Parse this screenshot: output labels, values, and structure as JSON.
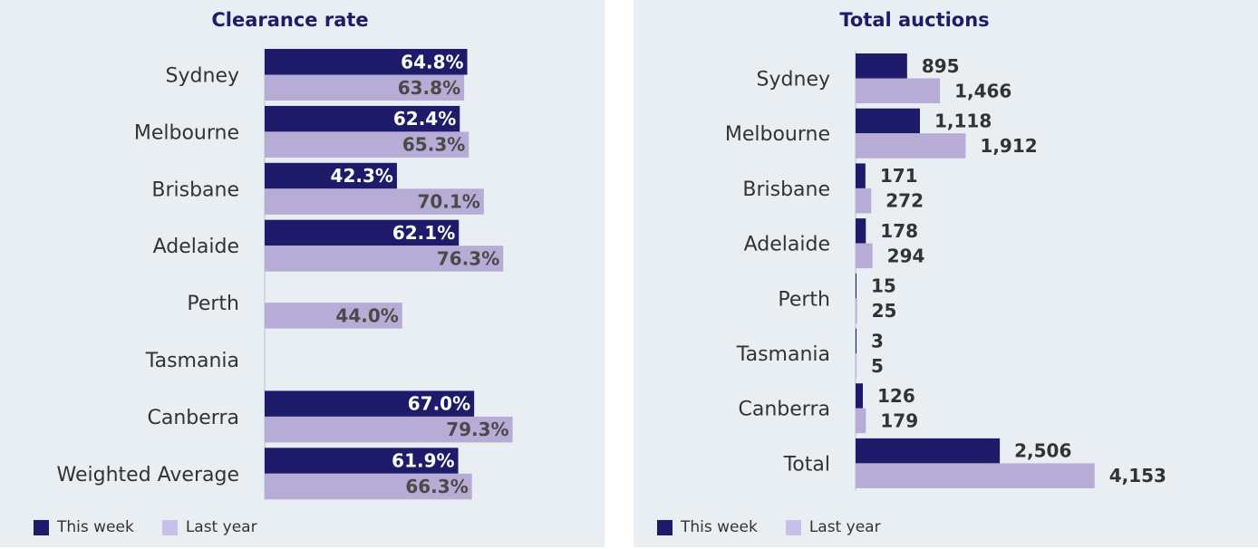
{
  "colors": {
    "this_week": "#1e1b6b",
    "last_year": "#b7acd6",
    "background": "#e9eef2"
  },
  "legend": {
    "this_week": "This week",
    "last_year": "Last year"
  },
  "chart_data": [
    {
      "type": "bar",
      "orientation": "horizontal",
      "title": "Clearance rate",
      "categories": [
        "Sydney",
        "Melbourne",
        "Brisbane",
        "Adelaide",
        "Perth",
        "Tasmania",
        "Canberra",
        "Weighted Average"
      ],
      "series": [
        {
          "name": "This week",
          "values": [
            64.8,
            62.4,
            42.3,
            62.1,
            null,
            null,
            67.0,
            61.9
          ],
          "labels": [
            "64.8%",
            "62.4%",
            "42.3%",
            "62.1%",
            "",
            "",
            "67.0%",
            "61.9%"
          ]
        },
        {
          "name": "Last year",
          "values": [
            63.8,
            65.3,
            70.1,
            76.3,
            44.0,
            null,
            79.3,
            66.3
          ],
          "labels": [
            "63.8%",
            "65.3%",
            "70.1%",
            "76.3%",
            "44.0%",
            "",
            "79.3%",
            "66.3%"
          ]
        }
      ],
      "xlim": [
        0,
        100
      ],
      "grid": false,
      "legend_position": "bottom-left"
    },
    {
      "type": "bar",
      "orientation": "horizontal",
      "title": "Total auctions",
      "categories": [
        "Sydney",
        "Melbourne",
        "Brisbane",
        "Adelaide",
        "Perth",
        "Tasmania",
        "Canberra",
        "Total"
      ],
      "series": [
        {
          "name": "This week",
          "values": [
            895,
            1118,
            171,
            178,
            15,
            3,
            126,
            2506
          ],
          "labels": [
            "895",
            "1,118",
            "171",
            "178",
            "15",
            "3",
            "126",
            "2,506"
          ]
        },
        {
          "name": "Last year",
          "values": [
            1466,
            1912,
            272,
            294,
            25,
            5,
            179,
            4153
          ],
          "labels": [
            "1,466",
            "1,912",
            "272",
            "294",
            "25",
            "5",
            "179",
            "4,153"
          ]
        }
      ],
      "xlim": [
        0,
        5000
      ],
      "grid": false,
      "legend_position": "bottom-left"
    }
  ]
}
